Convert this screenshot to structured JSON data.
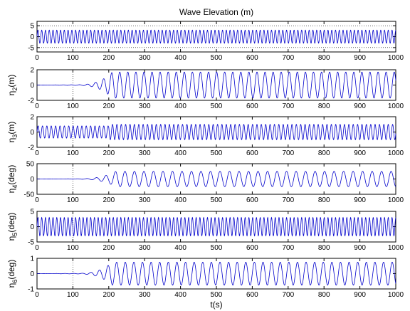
{
  "chart_data": {
    "title": "Wave Elevation (m)",
    "xlabel": "t(s)",
    "xlim": [
      0,
      1000
    ],
    "xticks": [
      "0",
      "100",
      "200",
      "300",
      "400",
      "500",
      "600",
      "700",
      "800",
      "900",
      "1000"
    ],
    "line_color": "#0000cc",
    "panels": [
      {
        "type": "line",
        "ylabel": "",
        "ylim": [
          -7,
          7
        ],
        "yticks": [
          "-5",
          "0",
          "5"
        ],
        "gridlines_y": [
          -5,
          5
        ],
        "signal": {
          "amplitude": 3,
          "period": 10.5,
          "ramp": "none"
        }
      },
      {
        "type": "line",
        "ylabel_base": "η",
        "ylabel_sub": "2",
        "ylabel_unit": "(m)",
        "ylim": [
          -2,
          2
        ],
        "yticks": [
          "-2",
          "0",
          "2"
        ],
        "signal": {
          "amplitude": 1.7,
          "period": 22.5,
          "ramp_start": 100,
          "ramp_end": 210
        }
      },
      {
        "type": "line",
        "ylabel_base": "η",
        "ylabel_sub": "3",
        "ylabel_unit": "(m)",
        "ylim": [
          -2,
          2
        ],
        "yticks": [
          "-2",
          "0",
          "2"
        ],
        "signal": {
          "amplitude": 1.0,
          "period": 12.2,
          "ramp": "step",
          "initial_amplitude": 0.8,
          "step_time": 200
        }
      },
      {
        "type": "line",
        "ylabel_base": "η",
        "ylabel_sub": "4",
        "ylabel_unit": "(deg)",
        "ylim": [
          -50,
          50
        ],
        "yticks": [
          "-50",
          "0",
          "50"
        ],
        "signal": {
          "amplitude": 25,
          "period": 26.5,
          "ramp_start": 100,
          "ramp_end": 220
        }
      },
      {
        "type": "line",
        "ylabel_base": "η",
        "ylabel_sub": "5",
        "ylabel_unit": "(deg)",
        "ylim": [
          -5,
          5
        ],
        "yticks": [
          "-5",
          "0",
          "5"
        ],
        "signal": {
          "amplitude": 3,
          "period": 10.5,
          "ramp": "none"
        }
      },
      {
        "type": "line",
        "ylabel_base": "η",
        "ylabel_sub": "6",
        "ylabel_unit": "(deg)",
        "ylim": [
          -1,
          1
        ],
        "yticks": [
          "-1",
          "0",
          "1"
        ],
        "signal": {
          "amplitude": 0.75,
          "period": 24.0,
          "ramp_start": 100,
          "ramp_end": 210
        }
      }
    ]
  }
}
